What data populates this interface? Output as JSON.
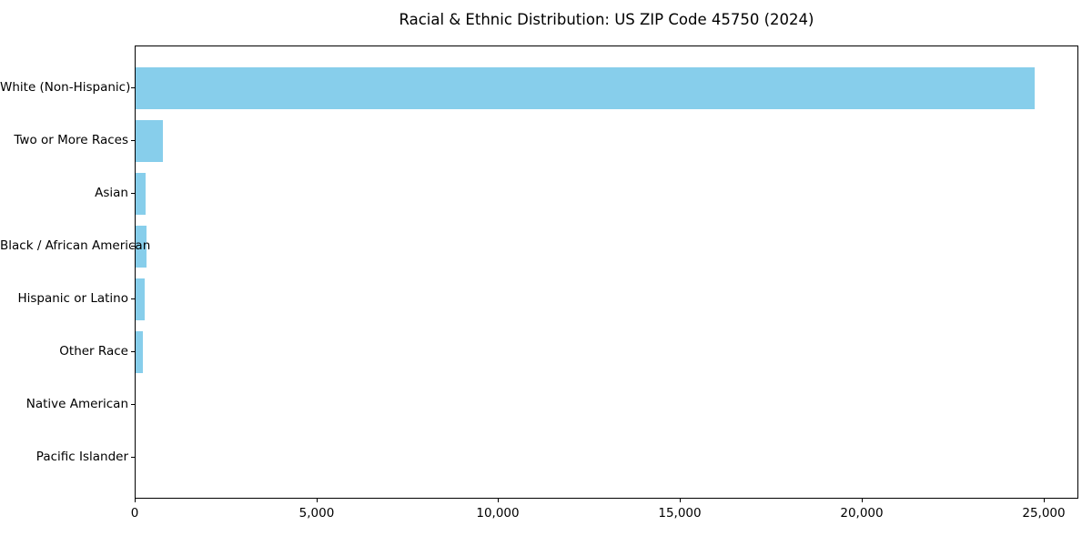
{
  "title": "Racial & Ethnic Distribution: US ZIP Code 45750 (2024)",
  "chart_data": {
    "type": "bar",
    "orientation": "horizontal",
    "title": "Racial & Ethnic Distribution: US ZIP Code 45750 (2024)",
    "categories": [
      "White (Non-Hispanic)",
      "Two or More Races",
      "Asian",
      "Black / African American",
      "Hispanic or Latino",
      "Other Race",
      "Native American",
      "Pacific Islander"
    ],
    "values": [
      24720,
      760,
      280,
      300,
      245,
      200,
      0,
      0
    ],
    "xlabel": "",
    "ylabel": "",
    "xlim": [
      0,
      25958
    ],
    "x_ticks": [
      0,
      5000,
      10000,
      15000,
      20000,
      25000
    ],
    "x_tick_labels": [
      "0",
      "5,000",
      "10,000",
      "15,000",
      "20,000",
      "25,000"
    ],
    "bar_color": "#87CEEB",
    "axis_color": "#000000",
    "grid": false,
    "legend": "none",
    "category_order": "largest value at top, y-axis inverted"
  }
}
